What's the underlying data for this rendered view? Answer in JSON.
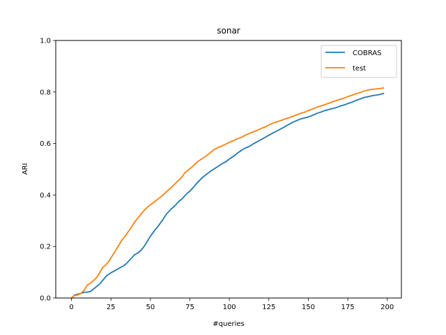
{
  "chart_data": {
    "type": "line",
    "title": "sonar",
    "xlabel": "#queries",
    "ylabel": "ARI",
    "xlim": [
      -9.95,
      208.95
    ],
    "ylim": [
      0,
      1.0
    ],
    "xticks": [
      0,
      25,
      50,
      75,
      100,
      125,
      150,
      175,
      200
    ],
    "yticks": [
      0.0,
      0.2,
      0.4,
      0.6,
      0.8,
      1.0
    ],
    "xtick_labels": [
      "0",
      "25",
      "50",
      "75",
      "100",
      "125",
      "150",
      "175",
      "200"
    ],
    "ytick_labels": [
      "0.0",
      "0.2",
      "0.4",
      "0.6",
      "0.8",
      "1.0"
    ],
    "grid": false,
    "legend_position": "top-right",
    "series": [
      {
        "name": "COBRAS",
        "color": "#1f77b4",
        "points": [
          [
            0,
            0
          ],
          [
            1,
            0.005
          ],
          [
            2,
            0.012
          ],
          [
            4,
            0.015
          ],
          [
            6,
            0.018
          ],
          [
            8,
            0.022
          ],
          [
            10,
            0.023
          ],
          [
            12,
            0.025
          ],
          [
            14,
            0.035
          ],
          [
            16,
            0.045
          ],
          [
            18,
            0.055
          ],
          [
            20,
            0.07
          ],
          [
            22,
            0.085
          ],
          [
            25,
            0.098
          ],
          [
            28,
            0.108
          ],
          [
            30,
            0.115
          ],
          [
            33,
            0.125
          ],
          [
            35,
            0.135
          ],
          [
            38,
            0.155
          ],
          [
            40,
            0.168
          ],
          [
            42,
            0.175
          ],
          [
            44,
            0.185
          ],
          [
            46,
            0.2
          ],
          [
            48,
            0.22
          ],
          [
            50,
            0.24
          ],
          [
            53,
            0.265
          ],
          [
            55,
            0.28
          ],
          [
            58,
            0.305
          ],
          [
            60,
            0.325
          ],
          [
            63,
            0.345
          ],
          [
            65,
            0.355
          ],
          [
            68,
            0.375
          ],
          [
            70,
            0.385
          ],
          [
            73,
            0.405
          ],
          [
            75,
            0.415
          ],
          [
            78,
            0.435
          ],
          [
            80,
            0.45
          ],
          [
            83,
            0.468
          ],
          [
            85,
            0.478
          ],
          [
            88,
            0.492
          ],
          [
            90,
            0.5
          ],
          [
            93,
            0.512
          ],
          [
            95,
            0.52
          ],
          [
            98,
            0.53
          ],
          [
            100,
            0.54
          ],
          [
            103,
            0.552
          ],
          [
            105,
            0.562
          ],
          [
            108,
            0.575
          ],
          [
            110,
            0.582
          ],
          [
            113,
            0.59
          ],
          [
            115,
            0.598
          ],
          [
            118,
            0.608
          ],
          [
            120,
            0.615
          ],
          [
            123,
            0.625
          ],
          [
            125,
            0.632
          ],
          [
            128,
            0.642
          ],
          [
            130,
            0.648
          ],
          [
            133,
            0.658
          ],
          [
            135,
            0.665
          ],
          [
            138,
            0.675
          ],
          [
            140,
            0.682
          ],
          [
            143,
            0.69
          ],
          [
            145,
            0.695
          ],
          [
            148,
            0.7
          ],
          [
            150,
            0.703
          ],
          [
            153,
            0.71
          ],
          [
            155,
            0.716
          ],
          [
            158,
            0.722
          ],
          [
            160,
            0.727
          ],
          [
            163,
            0.732
          ],
          [
            165,
            0.735
          ],
          [
            168,
            0.74
          ],
          [
            170,
            0.745
          ],
          [
            173,
            0.75
          ],
          [
            175,
            0.755
          ],
          [
            178,
            0.761
          ],
          [
            180,
            0.767
          ],
          [
            183,
            0.773
          ],
          [
            185,
            0.778
          ],
          [
            188,
            0.782
          ],
          [
            190,
            0.785
          ],
          [
            193,
            0.788
          ],
          [
            195,
            0.79
          ],
          [
            198,
            0.795
          ]
        ]
      },
      {
        "name": "test",
        "color": "#ff7f0e",
        "points": [
          [
            0,
            0
          ],
          [
            1,
            0.005
          ],
          [
            2,
            0.01
          ],
          [
            4,
            0.012
          ],
          [
            6,
            0.018
          ],
          [
            8,
            0.03
          ],
          [
            10,
            0.05
          ],
          [
            12,
            0.058
          ],
          [
            14,
            0.068
          ],
          [
            16,
            0.08
          ],
          [
            18,
            0.1
          ],
          [
            20,
            0.12
          ],
          [
            22,
            0.13
          ],
          [
            24,
            0.145
          ],
          [
            26,
            0.165
          ],
          [
            28,
            0.185
          ],
          [
            30,
            0.205
          ],
          [
            32,
            0.225
          ],
          [
            34,
            0.24
          ],
          [
            36,
            0.258
          ],
          [
            38,
            0.275
          ],
          [
            40,
            0.295
          ],
          [
            42,
            0.31
          ],
          [
            44,
            0.325
          ],
          [
            46,
            0.34
          ],
          [
            48,
            0.352
          ],
          [
            50,
            0.362
          ],
          [
            53,
            0.376
          ],
          [
            55,
            0.385
          ],
          [
            58,
            0.4
          ],
          [
            60,
            0.412
          ],
          [
            63,
            0.428
          ],
          [
            65,
            0.44
          ],
          [
            68,
            0.458
          ],
          [
            70,
            0.47
          ],
          [
            72,
            0.488
          ],
          [
            75,
            0.502
          ],
          [
            78,
            0.518
          ],
          [
            80,
            0.53
          ],
          [
            83,
            0.542
          ],
          [
            85,
            0.55
          ],
          [
            88,
            0.565
          ],
          [
            90,
            0.575
          ],
          [
            93,
            0.585
          ],
          [
            95,
            0.59
          ],
          [
            98,
            0.598
          ],
          [
            100,
            0.605
          ],
          [
            103,
            0.612
          ],
          [
            105,
            0.618
          ],
          [
            108,
            0.625
          ],
          [
            110,
            0.632
          ],
          [
            113,
            0.64
          ],
          [
            115,
            0.645
          ],
          [
            118,
            0.652
          ],
          [
            120,
            0.658
          ],
          [
            123,
            0.665
          ],
          [
            125,
            0.672
          ],
          [
            128,
            0.68
          ],
          [
            130,
            0.684
          ],
          [
            133,
            0.69
          ],
          [
            135,
            0.695
          ],
          [
            138,
            0.7
          ],
          [
            140,
            0.705
          ],
          [
            143,
            0.712
          ],
          [
            145,
            0.717
          ],
          [
            148,
            0.722
          ],
          [
            150,
            0.728
          ],
          [
            153,
            0.734
          ],
          [
            155,
            0.74
          ],
          [
            158,
            0.746
          ],
          [
            160,
            0.75
          ],
          [
            163,
            0.756
          ],
          [
            165,
            0.762
          ],
          [
            168,
            0.767
          ],
          [
            170,
            0.771
          ],
          [
            173,
            0.777
          ],
          [
            175,
            0.782
          ],
          [
            178,
            0.788
          ],
          [
            180,
            0.793
          ],
          [
            183,
            0.798
          ],
          [
            185,
            0.803
          ],
          [
            188,
            0.808
          ],
          [
            190,
            0.81
          ],
          [
            193,
            0.812
          ],
          [
            195,
            0.813
          ],
          [
            198,
            0.816
          ]
        ]
      }
    ]
  }
}
